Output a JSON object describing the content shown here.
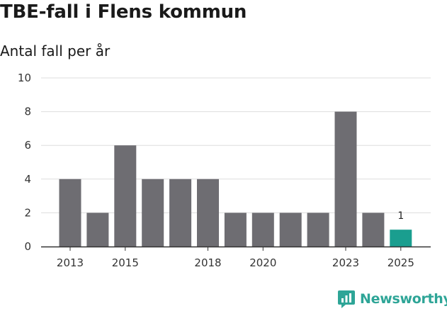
{
  "title": "TBE-fall i Flens kommun",
  "subtitle": "Antal fall per år",
  "logo": {
    "text": "Newsworthy",
    "icon": "chart-badge-icon",
    "color": "#2ea597"
  },
  "colors": {
    "bar_default": "#6e6d72",
    "bar_highlight": "#1a9e8f",
    "grid": "#dddddd",
    "axis": "#333333"
  },
  "chart_data": {
    "type": "bar",
    "categories": [
      "2013",
      "2014",
      "2015",
      "2016",
      "2017",
      "2018",
      "2019",
      "2020",
      "2021",
      "2022",
      "2023",
      "2024",
      "2025"
    ],
    "values": [
      4,
      2,
      6,
      4,
      4,
      4,
      2,
      2,
      2,
      2,
      8,
      2,
      1
    ],
    "highlight_index": 12,
    "x_tick_labels": [
      "2013",
      "2015",
      "2018",
      "2020",
      "2023",
      "2025"
    ],
    "y_ticks": [
      0,
      2,
      4,
      6,
      8,
      10
    ],
    "ylim": [
      0,
      10
    ],
    "data_labels": [
      {
        "category": "2025",
        "text": "1"
      }
    ],
    "title": "TBE-fall i Flens kommun",
    "subtitle": "Antal fall per år",
    "xlabel": "",
    "ylabel": "",
    "grid": true,
    "legend": "none"
  }
}
